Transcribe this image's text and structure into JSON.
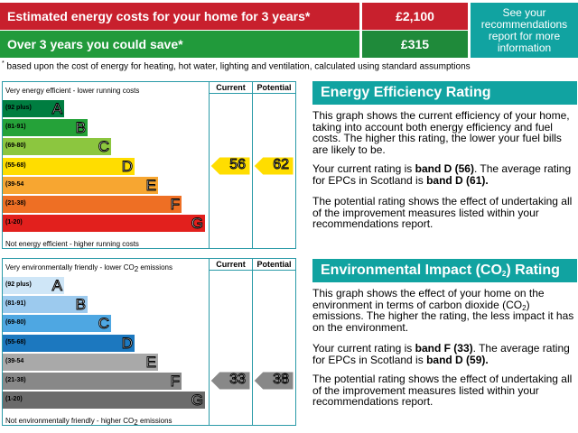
{
  "banner": {
    "cost_label": "Estimated energy costs for your home for 3 years*",
    "cost_value": "£2,100",
    "save_label": "Over 3 years you could save*",
    "save_value": "£315",
    "see_report": "See your recommendations report for more information",
    "footnote_mark": "*",
    "footnote": "based upon the cost of energy for heating, hot water, lighting and ventilation, calculated using standard assumptions"
  },
  "columns": {
    "current": "Current",
    "potential": "Potential"
  },
  "energy_chart": {
    "top_label": "Very energy efficient - lower running costs",
    "bottom_label": "Not energy efficient - higher running costs",
    "bands": [
      {
        "range": "(92 plus)",
        "letter": "A",
        "color": "#007d40"
      },
      {
        "range": "(81-91)",
        "letter": "B",
        "color": "#25a239"
      },
      {
        "range": "(69-80)",
        "letter": "C",
        "color": "#8cc63f"
      },
      {
        "range": "(55-68)",
        "letter": "D",
        "color": "#ffdd00"
      },
      {
        "range": "(39-54",
        "letter": "E",
        "color": "#f7a631"
      },
      {
        "range": "(21-38)",
        "letter": "F",
        "color": "#ee6f24"
      },
      {
        "range": "(1-20)",
        "letter": "G",
        "color": "#e2201d"
      }
    ],
    "current": 56,
    "potential": 62,
    "current_color": "#ffdd00",
    "potential_color": "#ffdd00"
  },
  "env_chart": {
    "top_label_pre": "Very environmentally friendly - lower CO",
    "top_label_sub": "2",
    "top_label_post": " emissions",
    "bottom_label_pre": "Not environmentally friendly - higher CO",
    "bottom_label_sub": "2",
    "bottom_label_post": " emissions",
    "bands": [
      {
        "range": "(92 plus)",
        "letter": "A",
        "color": "#cfe6f7"
      },
      {
        "range": "(81-91)",
        "letter": "B",
        "color": "#9ccaee"
      },
      {
        "range": "(69-80)",
        "letter": "C",
        "color": "#4ea7e2"
      },
      {
        "range": "(55-68)",
        "letter": "D",
        "color": "#1c78bf"
      },
      {
        "range": "(39-54",
        "letter": "E",
        "color": "#a9a9a9"
      },
      {
        "range": "(21-38)",
        "letter": "F",
        "color": "#888888"
      },
      {
        "range": "(1-20)",
        "letter": "G",
        "color": "#6b6b6b"
      }
    ],
    "current": 33,
    "potential": 38,
    "current_color": "#888888",
    "potential_color": "#888888"
  },
  "energy_text": {
    "title": "Energy Efficiency Rating",
    "p1": "This graph shows the current efficiency of your home, taking into account both energy efficiency and fuel costs. The higher this rating, the lower your fuel bills are likely to be.",
    "p2_a": "Your current rating is ",
    "p2_b": "band D (56)",
    "p2_c": ". The average rating for EPCs in Scotland is ",
    "p2_d": "band D (61).",
    "p3": "The potential rating shows the effect of undertaking all of the improvement measures listed within your recommendations report."
  },
  "env_text": {
    "title_pre": "Environmental Impact (CO",
    "title_sub": "2",
    "title_post": ") Rating",
    "p1_pre": "This graph shows the effect of your home on the environment in terms of carbon dioxide (CO",
    "p1_sub": "2",
    "p1_post": ") emissions. The higher the rating, the less impact it has on the environment.",
    "p2_a": "Your current rating is ",
    "p2_b": "band F (33)",
    "p2_c": ". The average rating for EPCs in Scotland is ",
    "p2_d": "band D (59).",
    "p3": "The potential rating shows the effect of undertaking all of the improvement measures listed within your recommendations report."
  }
}
